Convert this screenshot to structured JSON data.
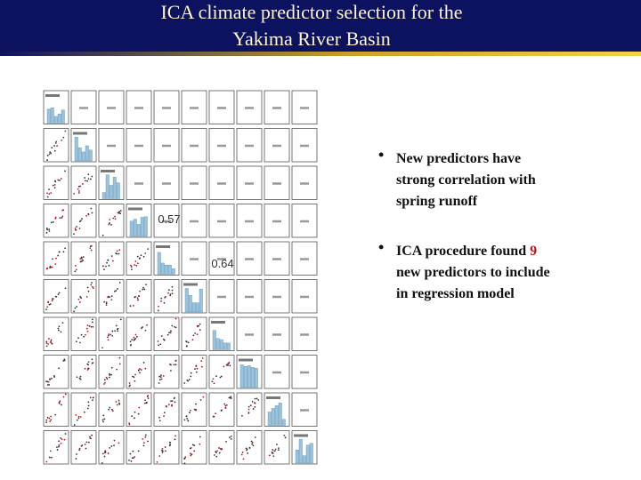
{
  "header": {
    "title_lines": [
      "ICA climate predictor selection for the",
      "Yakima River Basin"
    ]
  },
  "matrix": {
    "correlations": [
      "0.57",
      "0.64"
    ]
  },
  "bullets": [
    {
      "lines": [
        "New predictors have",
        "strong correlation with",
        "spring runoff"
      ]
    },
    {
      "lead": "ICA procedure found",
      "highlight": "9",
      "lines": [
        "new predictors to include",
        "in regression model"
      ]
    }
  ]
}
